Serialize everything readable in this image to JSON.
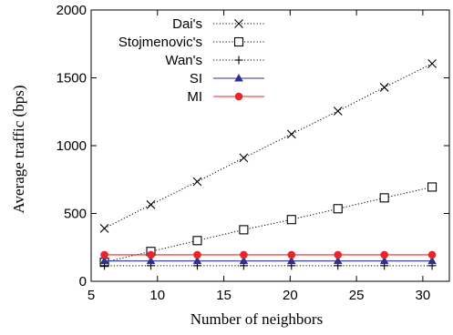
{
  "chart_data": {
    "type": "line",
    "title": "",
    "xlabel": "Number of neighbors",
    "ylabel": "Average traffic (bps)",
    "xlim": [
      5,
      32
    ],
    "ylim": [
      0,
      2000
    ],
    "xticks": [
      5,
      10,
      15,
      20,
      25,
      30
    ],
    "yticks": [
      0,
      500,
      1000,
      1500,
      2000
    ],
    "grid": false,
    "legend_position": "top-left",
    "x": [
      6,
      9.5,
      13,
      16.5,
      20.1,
      23.6,
      27.1,
      30.7
    ],
    "series": [
      {
        "name": "Dai's",
        "marker": "x",
        "line_style": "dotted",
        "color": "#000000",
        "values": [
          390,
          565,
          735,
          910,
          1085,
          1255,
          1430,
          1605
        ]
      },
      {
        "name": "Stojmenovic's",
        "marker": "square",
        "line_style": "dotted",
        "color": "#000000",
        "values": [
          140,
          220,
          300,
          380,
          455,
          535,
          615,
          695
        ]
      },
      {
        "name": "Wan's",
        "marker": "plus",
        "line_style": "dotted",
        "color": "#000000",
        "values": [
          115,
          115,
          115,
          115,
          115,
          115,
          115,
          115
        ]
      },
      {
        "name": "SI",
        "marker": "triangle",
        "line_style": "solid",
        "color": "#2b3190",
        "values": [
          150,
          150,
          150,
          150,
          150,
          150,
          150,
          150
        ]
      },
      {
        "name": "MI",
        "marker": "circle",
        "line_style": "solid",
        "color": "#e8252a",
        "values": [
          195,
          195,
          195,
          195,
          195,
          195,
          195,
          195
        ]
      }
    ]
  }
}
